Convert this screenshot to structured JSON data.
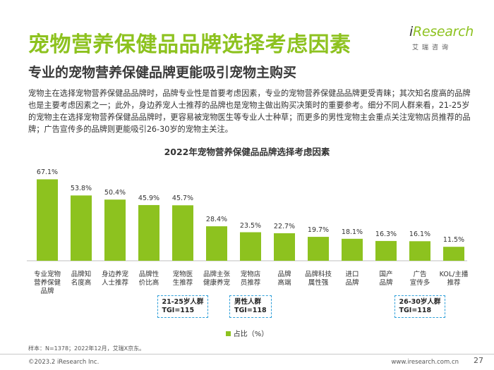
{
  "header": {
    "title": "宠物营养保健品品牌选择考虑因素",
    "subtitle": "专业的宠物营养保健品牌更能吸引宠物主购买"
  },
  "logo": {
    "brand_i": "i",
    "brand_rest": "Research",
    "cn": "艾瑞咨询"
  },
  "body_text": "宠物主在选择宠物营养保健品品牌时，品牌专业性是首要考虑因素，专业的宠物营养保健品品牌更受青睐；其次知名度高的品牌也是主要考虑因素之一；此外，身边养宠人士推荐的品牌也是宠物主做出购买决策时的重要参考。细分不同人群来看，21-25岁的宠物主在选择宠物营养保健品品牌时，更容易被宠物医生等专业人士种草；而更多的男性宠物主会重点关注宠物店员推荐的品牌；广告宣传多的品牌则更能吸引26-30岁的宠物主关注。",
  "chart_data": {
    "type": "bar",
    "title": "2022年宠物营养保健品品牌选择考虑因素",
    "categories": [
      "专业宠物\n营养保健\n品牌",
      "品牌知\n名度高",
      "身边养宠\n人士推荐",
      "品牌性\n价比高",
      "宠物医\n生推荐",
      "品牌主张\n健康养宠",
      "宠物店\n员推荐",
      "品牌\n高端",
      "品牌科技\n属性强",
      "进口\n品牌",
      "国产\n品牌",
      "广告\n宣传多",
      "KOL/主播\n推荐"
    ],
    "values": [
      67.1,
      53.8,
      50.4,
      45.9,
      45.7,
      28.4,
      23.5,
      22.7,
      19.7,
      18.1,
      16.3,
      16.1,
      11.5
    ],
    "value_labels": [
      "67.1%",
      "53.8%",
      "50.4%",
      "45.9%",
      "45.7%",
      "28.4%",
      "23.5%",
      "22.7%",
      "19.7%",
      "18.1%",
      "16.3%",
      "16.1%",
      "11.5%"
    ],
    "ylim": [
      0,
      72
    ],
    "legend": "占比（%）",
    "bar_color": "#8dc21f",
    "annotations": [
      {
        "text": "21-25岁人群\nTGI=115",
        "category_index": 4
      },
      {
        "text": "男性人群\nTGI=118",
        "category_index": 6
      },
      {
        "text": "26-30岁人群\nTGI=118",
        "category_index": 11
      }
    ]
  },
  "note": "样本：N=1378；2022年12月，艾瑞X京东。",
  "footer": {
    "copyright": "©2023.2 iResearch Inc.",
    "website": "www.iresearch.com.cn",
    "page": "27"
  }
}
